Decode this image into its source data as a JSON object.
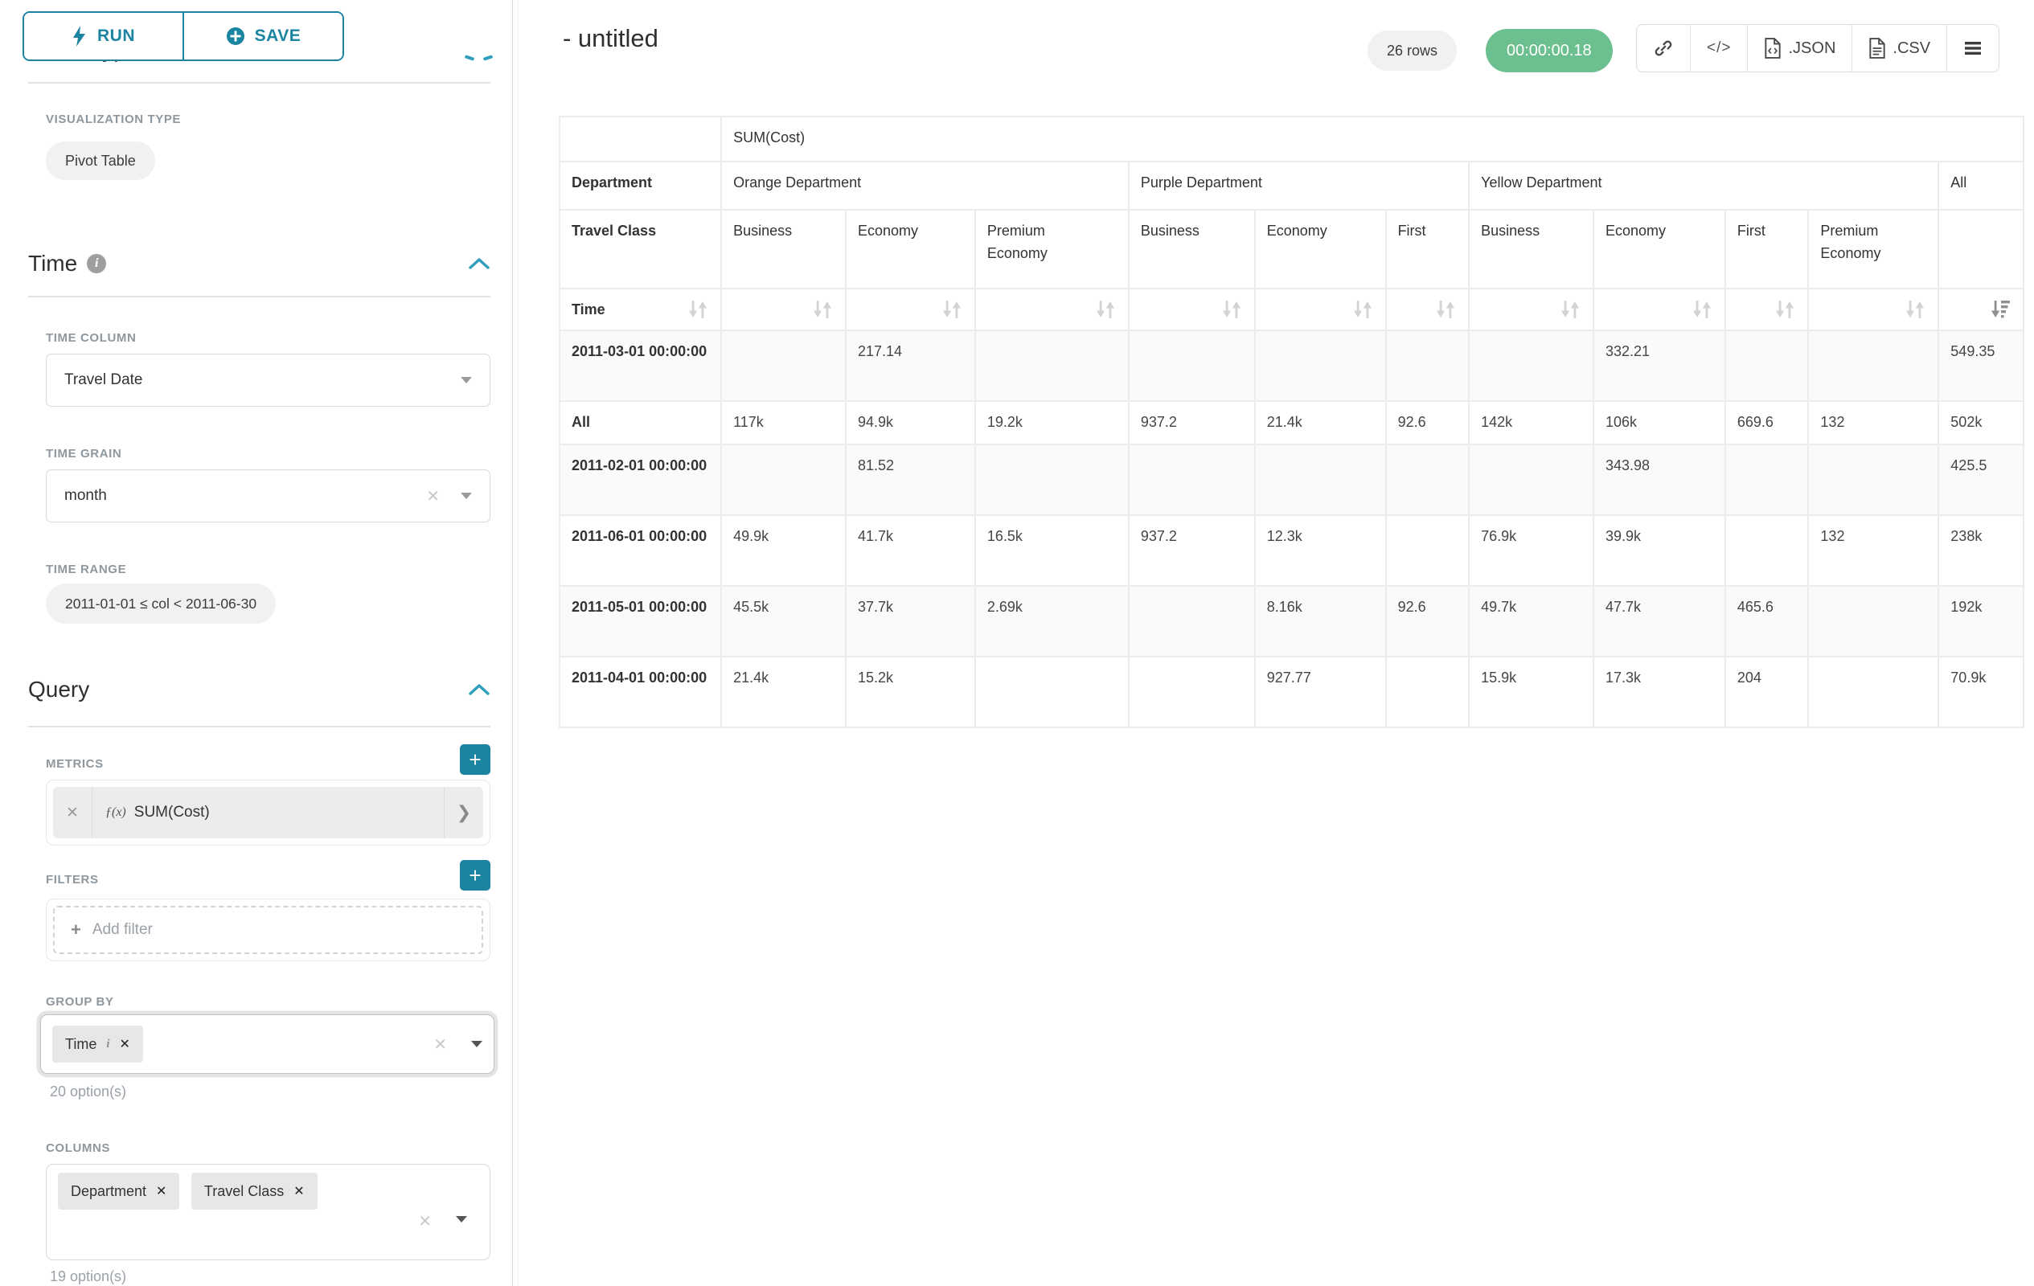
{
  "sidebar": {
    "run_label": "RUN",
    "save_label": "SAVE",
    "chart_type_heading": "Chart Type",
    "visualization": {
      "label": "VISUALIZATION TYPE",
      "value": "Pivot Table"
    },
    "time_section": {
      "title": "Time",
      "time_column_label": "TIME COLUMN",
      "time_column_value": "Travel Date",
      "time_grain_label": "TIME GRAIN",
      "time_grain_value": "month",
      "time_range_label": "TIME RANGE",
      "time_range_value": "2011-01-01 ≤ col < 2011-06-30"
    },
    "query_section": {
      "title": "Query",
      "metrics_label": "METRICS",
      "metric_fx": "ƒ(x)",
      "metric_value": "SUM(Cost)",
      "filters_label": "FILTERS",
      "add_filter_label": "Add filter",
      "group_by_label": "GROUP BY",
      "group_by_pills": [
        {
          "label": "Time"
        }
      ],
      "group_by_note": "20 option(s)",
      "columns_label": "COLUMNS",
      "columns_pills": [
        {
          "label": "Department"
        },
        {
          "label": "Travel Class"
        }
      ],
      "columns_note": "19 option(s)"
    }
  },
  "header": {
    "title": "- untitled",
    "rows_badge": "26 rows",
    "timer_badge": "00:00:00.18",
    "export_json_label": ".JSON",
    "export_csv_label": ".CSV"
  },
  "pivot": {
    "metric_header": "SUM(Cost)",
    "row_dim_header": "Department",
    "row_dim_subheader": "Travel Class",
    "sort_row_label": "Time",
    "col_groups": [
      {
        "label": "Orange Department",
        "children": [
          "Business",
          "Economy",
          "Premium Economy"
        ]
      },
      {
        "label": "Purple Department",
        "children": [
          "Business",
          "Economy",
          "First"
        ]
      },
      {
        "label": "Yellow Department",
        "children": [
          "Business",
          "Economy",
          "First",
          "Premium Economy"
        ]
      },
      {
        "label": "All",
        "children": [
          ""
        ]
      }
    ],
    "rows": [
      {
        "label": "2011-03-01 00:00:00",
        "values": [
          "",
          "217.14",
          "",
          "",
          "",
          "",
          "",
          "332.21",
          "",
          "",
          "549.35"
        ]
      },
      {
        "label": "All",
        "values": [
          "117k",
          "94.9k",
          "19.2k",
          "937.2",
          "21.4k",
          "92.6",
          "142k",
          "106k",
          "669.6",
          "132",
          "502k"
        ]
      },
      {
        "label": "2011-02-01 00:00:00",
        "values": [
          "",
          "81.52",
          "",
          "",
          "",
          "",
          "",
          "343.98",
          "",
          "",
          "425.5"
        ]
      },
      {
        "label": "2011-06-01 00:00:00",
        "values": [
          "49.9k",
          "41.7k",
          "16.5k",
          "937.2",
          "12.3k",
          "",
          "76.9k",
          "39.9k",
          "",
          "132",
          "238k"
        ]
      },
      {
        "label": "2011-05-01 00:00:00",
        "values": [
          "45.5k",
          "37.7k",
          "2.69k",
          "",
          "8.16k",
          "92.6",
          "49.7k",
          "47.7k",
          "465.6",
          "",
          "192k"
        ]
      },
      {
        "label": "2011-04-01 00:00:00",
        "values": [
          "21.4k",
          "15.2k",
          "",
          "",
          "927.77",
          "",
          "15.9k",
          "17.3k",
          "204",
          "",
          "70.9k"
        ]
      }
    ]
  }
}
